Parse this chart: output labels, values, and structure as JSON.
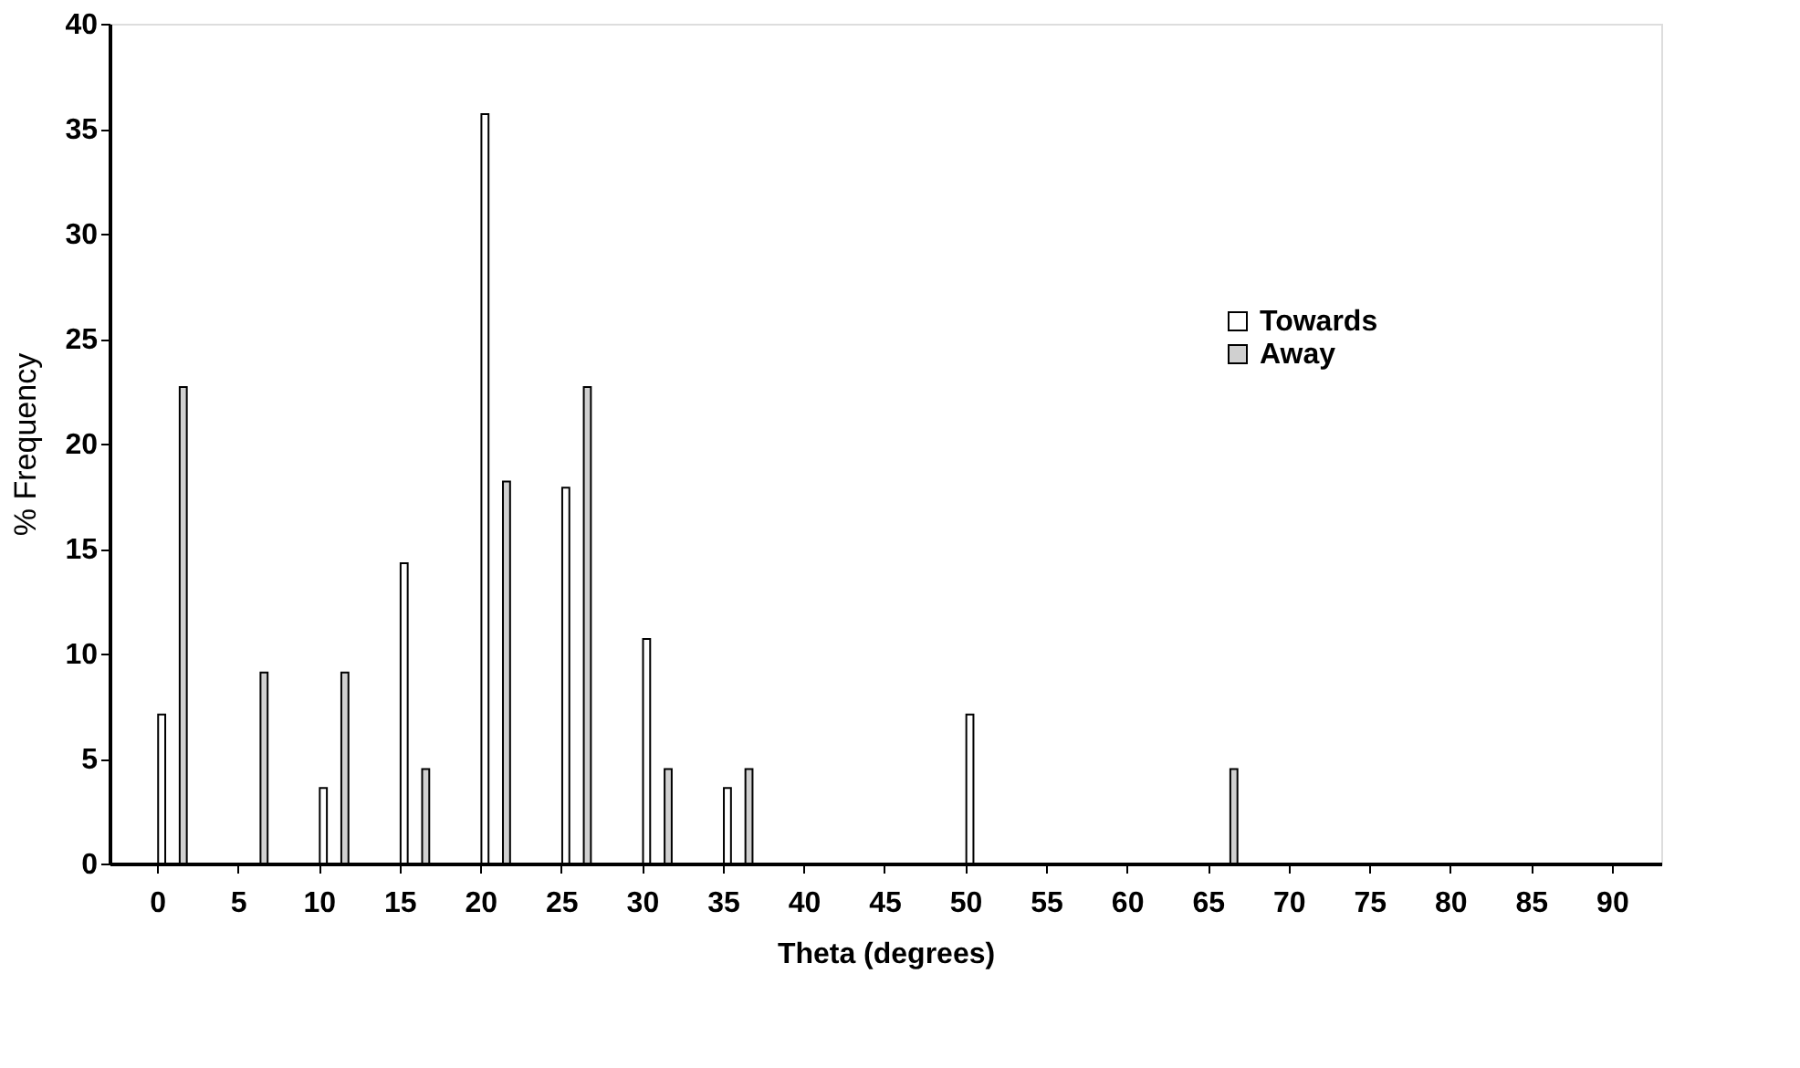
{
  "chart_data": {
    "type": "bar",
    "xlabel": "Theta (degrees)",
    "ylabel": "% Frequency",
    "categories": [
      "0",
      "5",
      "10",
      "15",
      "20",
      "25",
      "30",
      "35",
      "40",
      "45",
      "50",
      "55",
      "60",
      "65",
      "70",
      "75",
      "80",
      "85",
      "90"
    ],
    "series": [
      {
        "name": "Towards",
        "color": "#ffffff",
        "values": [
          7.1,
          null,
          3.6,
          14.3,
          35.7,
          17.9,
          10.7,
          3.6,
          null,
          null,
          7.1,
          null,
          null,
          null,
          null,
          null,
          null,
          null,
          null
        ]
      },
      {
        "name": "Away",
        "color": "#d0d0d0",
        "values": [
          22.7,
          9.1,
          9.1,
          4.5,
          18.2,
          22.7,
          4.5,
          4.5,
          null,
          null,
          null,
          null,
          null,
          4.5,
          null,
          null,
          null,
          null,
          null
        ]
      }
    ],
    "ylim": [
      0,
      40
    ],
    "yticks": [
      0,
      5,
      10,
      15,
      20,
      25,
      30,
      35,
      40
    ],
    "grid": false,
    "legend": "top right"
  }
}
